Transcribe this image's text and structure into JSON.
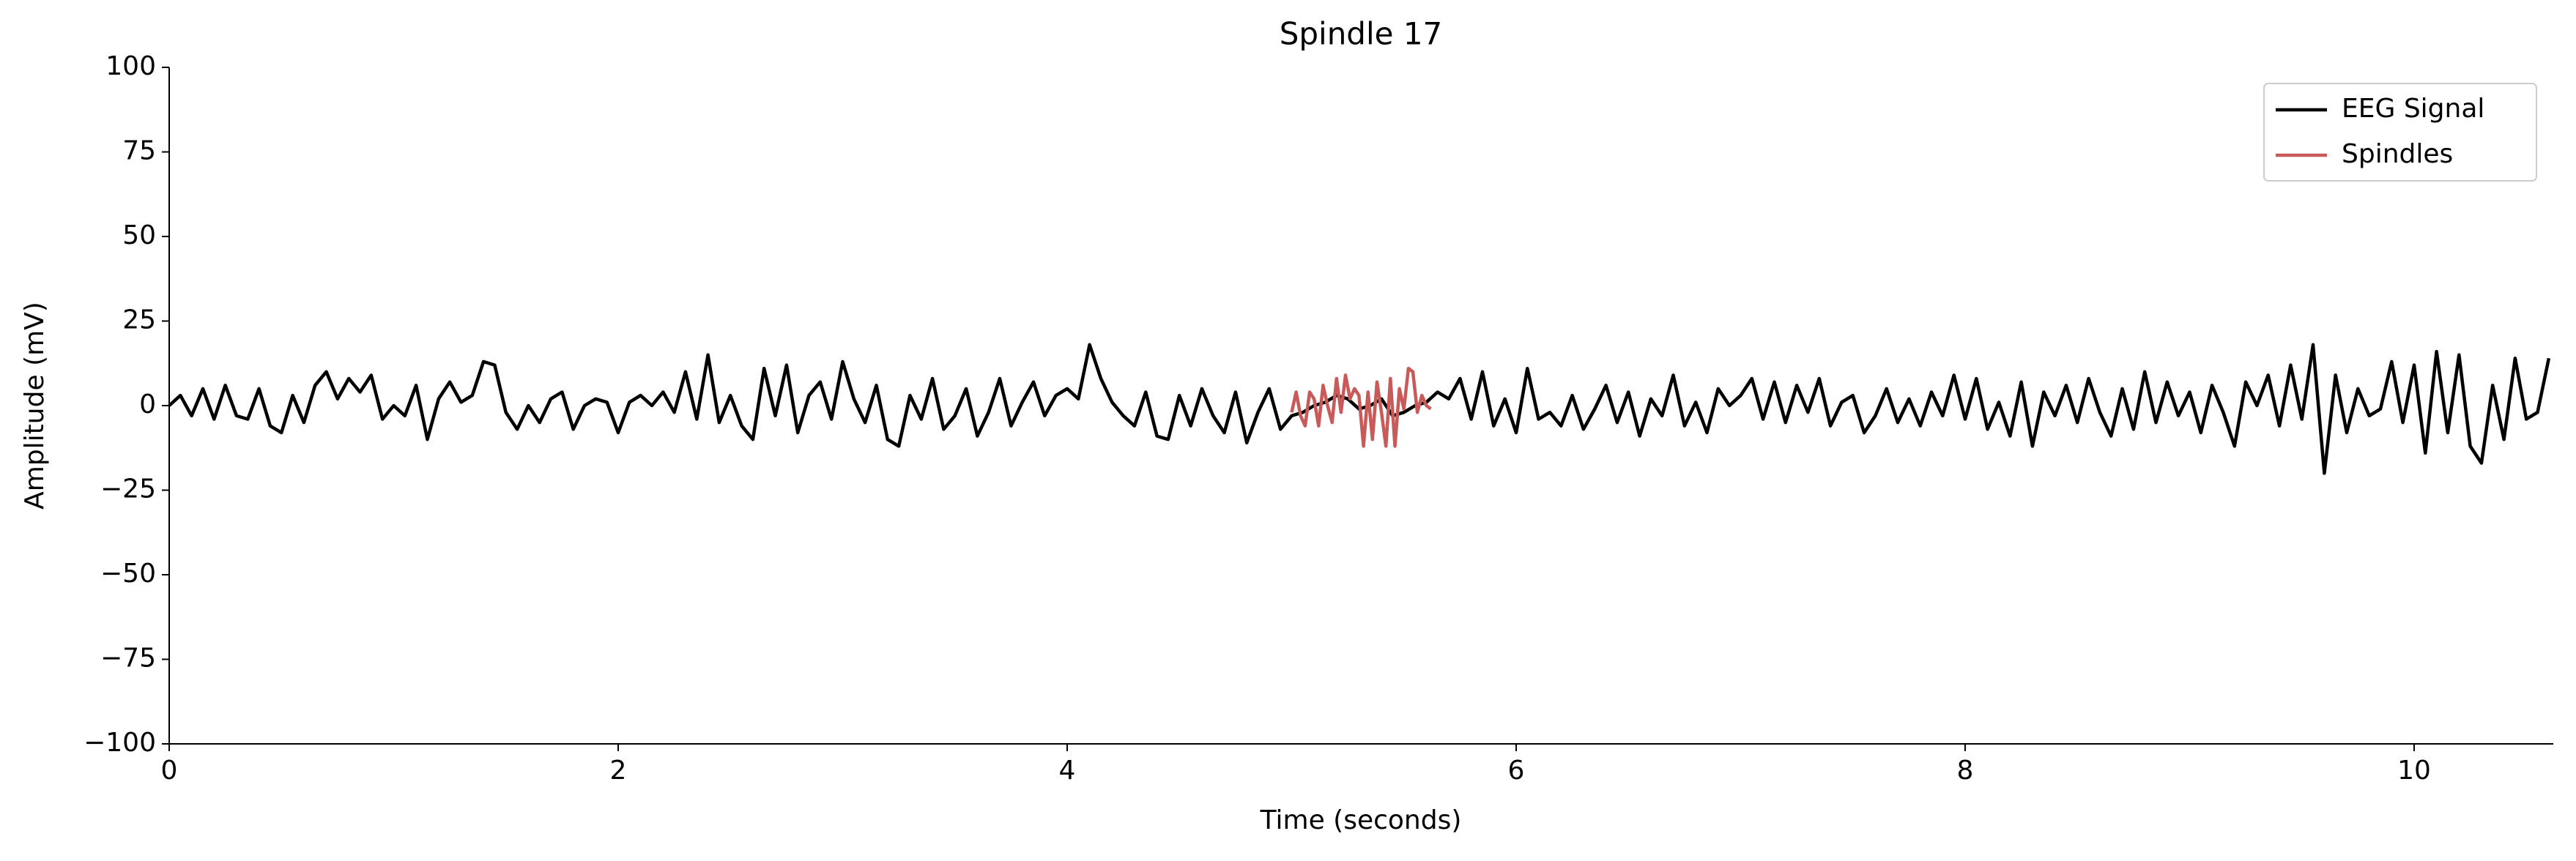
{
  "chart_data": {
    "type": "line",
    "title": "Spindle 17",
    "x_label": "Time (seconds)",
    "y_label": "Amplitude (mV)",
    "xlim": [
      0,
      10.62
    ],
    "ylim": [
      -100,
      100
    ],
    "xticks": [
      0,
      2,
      4,
      6,
      8,
      10
    ],
    "yticks": [
      {
        "value": -100,
        "label": "−100"
      },
      {
        "value": -75,
        "label": "−75"
      },
      {
        "value": -50,
        "label": "−50"
      },
      {
        "value": -25,
        "label": "−25"
      },
      0,
      25,
      50,
      75,
      100
    ],
    "legend": "upper right",
    "series": [
      {
        "name": "EEG Signal",
        "color": "#000000",
        "x": [
          0,
          0.05,
          0.1,
          0.15,
          0.2,
          0.25,
          0.3,
          0.35,
          0.4,
          0.45,
          0.5,
          0.55,
          0.6,
          0.65,
          0.7,
          0.75,
          0.8,
          0.85,
          0.9,
          0.95,
          1,
          1.05,
          1.1,
          1.15,
          1.2,
          1.25,
          1.3,
          1.35,
          1.4,
          1.45,
          1.5,
          1.55,
          1.6,
          1.65,
          1.7,
          1.75,
          1.8,
          1.85,
          1.9,
          1.95,
          2,
          2.05,
          2.1,
          2.15,
          2.2,
          2.25,
          2.3,
          2.35,
          2.4,
          2.45,
          2.5,
          2.55,
          2.6,
          2.65,
          2.7,
          2.75,
          2.8,
          2.85,
          2.9,
          2.95,
          3,
          3.05,
          3.1,
          3.15,
          3.2,
          3.25,
          3.3,
          3.35,
          3.4,
          3.45,
          3.5,
          3.55,
          3.6,
          3.65,
          3.7,
          3.75,
          3.8,
          3.85,
          3.9,
          3.95,
          4,
          4.05,
          4.1,
          4.15,
          4.2,
          4.25,
          4.3,
          4.35,
          4.4,
          4.45,
          4.5,
          4.55,
          4.6,
          4.65,
          4.7,
          4.75,
          4.8,
          4.85,
          4.9,
          4.95,
          5,
          5.05,
          5.1,
          5.15,
          5.2,
          5.25,
          5.3,
          5.35,
          5.4,
          5.45,
          5.5,
          5.55,
          5.6,
          5.65,
          5.7,
          5.75,
          5.8,
          5.85,
          5.9,
          5.95,
          6,
          6.05,
          6.1,
          6.15,
          6.2,
          6.25,
          6.3,
          6.35,
          6.4,
          6.45,
          6.5,
          6.55,
          6.6,
          6.65,
          6.7,
          6.75,
          6.8,
          6.85,
          6.9,
          6.95,
          7,
          7.05,
          7.1,
          7.15,
          7.2,
          7.25,
          7.3,
          7.35,
          7.4,
          7.45,
          7.5,
          7.55,
          7.6,
          7.65,
          7.7,
          7.75,
          7.8,
          7.85,
          7.9,
          7.95,
          8,
          8.05,
          8.1,
          8.15,
          8.2,
          8.25,
          8.3,
          8.35,
          8.4,
          8.45,
          8.5,
          8.55,
          8.6,
          8.65,
          8.7,
          8.75,
          8.8,
          8.85,
          8.9,
          8.95,
          9,
          9.05,
          9.1,
          9.15,
          9.2,
          9.25,
          9.3,
          9.35,
          9.4,
          9.45,
          9.5,
          9.55,
          9.6,
          9.65,
          9.7,
          9.75,
          9.8,
          9.85,
          9.9,
          9.95,
          10,
          10.05,
          10.1,
          10.15,
          10.2,
          10.25,
          10.3,
          10.35,
          10.4,
          10.45,
          10.5,
          10.55,
          10.6
        ],
        "values": [
          0,
          3,
          -3,
          5,
          -4,
          6,
          -3,
          -4,
          5,
          -6,
          -8,
          3,
          -5,
          6,
          10,
          2,
          8,
          4,
          9,
          -4,
          0,
          -3,
          6,
          -10,
          2,
          7,
          1,
          3,
          13,
          12,
          -2,
          -7,
          0,
          -5,
          2,
          4,
          -7,
          0,
          2,
          1,
          -8,
          1,
          3,
          0,
          4,
          -2,
          10,
          -4,
          15,
          -5,
          3,
          -6,
          -10,
          11,
          -3,
          12,
          -8,
          3,
          7,
          -4,
          13,
          2,
          -5,
          6,
          -10,
          -12,
          3,
          -4,
          8,
          -7,
          -3,
          5,
          -9,
          -2,
          8,
          -6,
          1,
          7,
          -3,
          3,
          5,
          2,
          18,
          8,
          1,
          -3,
          -6,
          4,
          -9,
          -10,
          3,
          -6,
          5,
          -3,
          -8,
          4,
          -11,
          -2,
          5,
          -7,
          -3,
          -2,
          0,
          1,
          3,
          2,
          -1,
          0,
          2,
          -3,
          -2,
          0,
          1,
          4,
          2,
          8,
          -4,
          10,
          -6,
          2,
          -8,
          11,
          -4,
          -2,
          -6,
          3,
          -7,
          -1,
          6,
          -5,
          4,
          -9,
          2,
          -3,
          9,
          -6,
          1,
          -8,
          5,
          0,
          3,
          8,
          -4,
          7,
          -5,
          6,
          -2,
          8,
          -6,
          1,
          3,
          -8,
          -3,
          5,
          -5,
          2,
          -6,
          4,
          -3,
          9,
          -4,
          8,
          -7,
          1,
          -9,
          7,
          -12,
          4,
          -3,
          6,
          -5,
          8,
          -2,
          -9,
          5,
          -7,
          10,
          -5,
          7,
          -3,
          4,
          -8,
          6,
          -2,
          -12,
          7,
          0,
          9,
          -6,
          12,
          -4,
          18,
          -20,
          9,
          -8,
          5,
          -3,
          -1,
          13,
          -5,
          12,
          -14,
          16,
          -8,
          15,
          -12,
          -17,
          6,
          -10,
          14,
          -4,
          -2,
          14
        ]
      },
      {
        "name": "Spindles",
        "color": "#c85a5a",
        "x": [
          5,
          5.02,
          5.04,
          5.06,
          5.08,
          5.1,
          5.12,
          5.14,
          5.16,
          5.18,
          5.2,
          5.22,
          5.24,
          5.26,
          5.28,
          5.3,
          5.32,
          5.34,
          5.36,
          5.38,
          5.4,
          5.42,
          5.44,
          5.46,
          5.48,
          5.5,
          5.52,
          5.54,
          5.56,
          5.58,
          5.6,
          5.62
        ],
        "values": [
          -2,
          4,
          -3,
          -6,
          4,
          2,
          -6,
          6,
          0,
          -5,
          8,
          -2,
          9,
          2,
          5,
          3,
          -12,
          4,
          -10,
          7,
          -2,
          -12,
          8,
          -12,
          5,
          -1,
          11,
          10,
          -2,
          3,
          0,
          -1
        ]
      }
    ]
  }
}
